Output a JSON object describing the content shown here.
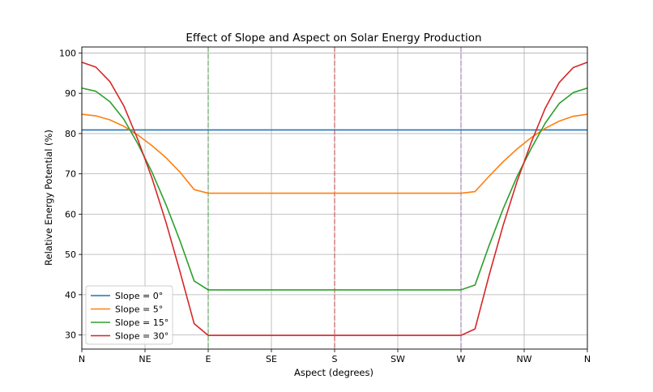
{
  "chart_data": {
    "type": "line",
    "title": "Effect of Slope and Aspect on Solar Energy Production",
    "xlabel": "Aspect (degrees)",
    "ylabel": "Relative Energy Potential (%)",
    "xlim": [
      0,
      360
    ],
    "ylim": [
      26.5,
      101.5
    ],
    "xticks": [
      {
        "value": 0,
        "label": "N"
      },
      {
        "value": 45,
        "label": "NE"
      },
      {
        "value": 90,
        "label": "E"
      },
      {
        "value": 135,
        "label": "SE"
      },
      {
        "value": 180,
        "label": "S"
      },
      {
        "value": 225,
        "label": "SW"
      },
      {
        "value": 270,
        "label": "W"
      },
      {
        "value": 315,
        "label": "NW"
      },
      {
        "value": 360,
        "label": "N"
      }
    ],
    "yticks": [
      {
        "value": 30,
        "label": "30"
      },
      {
        "value": 40,
        "label": "40"
      },
      {
        "value": 50,
        "label": "50"
      },
      {
        "value": 60,
        "label": "60"
      },
      {
        "value": 70,
        "label": "70"
      },
      {
        "value": 80,
        "label": "80"
      },
      {
        "value": 90,
        "label": "90"
      },
      {
        "value": 100,
        "label": "100"
      }
    ],
    "grid": true,
    "legend_position": "lower-left",
    "vlines": [
      {
        "x": 90,
        "color": "#2ca02c"
      },
      {
        "x": 180,
        "color": "#d62728"
      },
      {
        "x": 270,
        "color": "#9467bd"
      }
    ],
    "x": [
      0,
      10,
      20,
      30,
      40,
      50,
      60,
      70,
      80,
      90,
      100,
      110,
      120,
      130,
      140,
      150,
      160,
      170,
      180,
      190,
      200,
      210,
      220,
      230,
      240,
      250,
      260,
      270,
      280,
      290,
      300,
      310,
      320,
      330,
      340,
      350,
      360
    ],
    "series": [
      {
        "name": "Slope = 0°",
        "color": "#1f77b4",
        "values": [
          80.9,
          80.9,
          80.9,
          80.9,
          80.9,
          80.9,
          80.9,
          80.9,
          80.9,
          80.9,
          80.9,
          80.9,
          80.9,
          80.9,
          80.9,
          80.9,
          80.9,
          80.9,
          80.9,
          80.9,
          80.9,
          80.9,
          80.9,
          80.9,
          80.9,
          80.9,
          80.9,
          80.9,
          80.9,
          80.9,
          80.9,
          80.9,
          80.9,
          80.9,
          80.9,
          80.9,
          80.9
        ]
      },
      {
        "name": "Slope = 5°",
        "color": "#ff7f0e",
        "values": [
          84.8,
          84.4,
          83.4,
          81.8,
          79.6,
          77.0,
          74.0,
          70.4,
          66.1,
          65.2,
          65.2,
          65.2,
          65.2,
          65.2,
          65.2,
          65.2,
          65.2,
          65.2,
          65.2,
          65.2,
          65.2,
          65.2,
          65.2,
          65.2,
          65.2,
          65.2,
          65.2,
          65.2,
          65.6,
          69.4,
          73.0,
          76.2,
          79.0,
          81.3,
          83.1,
          84.3,
          84.8
        ]
      },
      {
        "name": "Slope = 15°",
        "color": "#2ca02c",
        "values": [
          91.3,
          90.5,
          87.9,
          83.5,
          77.4,
          70.4,
          62.3,
          53.3,
          43.4,
          41.2,
          41.2,
          41.2,
          41.2,
          41.2,
          41.2,
          41.2,
          41.2,
          41.2,
          41.2,
          41.2,
          41.2,
          41.2,
          41.2,
          41.2,
          41.2,
          41.2,
          41.2,
          41.2,
          42.4,
          52.2,
          61.3,
          69.4,
          76.3,
          82.6,
          87.5,
          90.2,
          91.3
        ]
      },
      {
        "name": "Slope = 30°",
        "color": "#d62728",
        "values": [
          97.7,
          96.5,
          92.9,
          86.8,
          78.4,
          68.9,
          57.9,
          45.6,
          32.8,
          29.9,
          29.9,
          29.9,
          29.9,
          29.9,
          29.9,
          29.9,
          29.9,
          29.9,
          29.9,
          29.9,
          29.9,
          29.9,
          29.9,
          29.9,
          29.9,
          29.9,
          29.9,
          29.9,
          31.5,
          44.8,
          57.2,
          68.2,
          77.8,
          86.3,
          92.7,
          96.4,
          97.7
        ]
      }
    ]
  }
}
